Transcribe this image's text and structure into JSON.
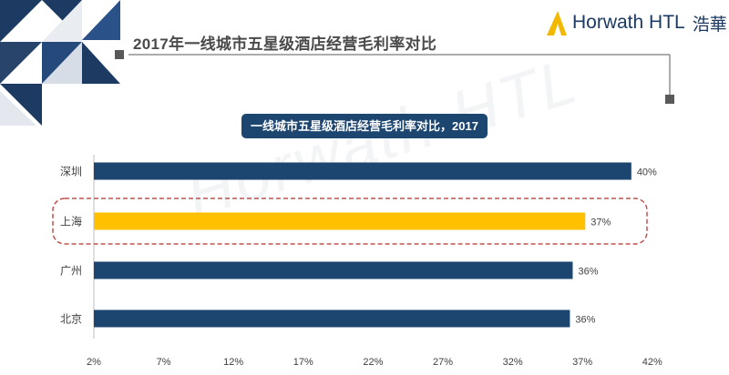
{
  "header": {
    "title": "2017年一线城市五星级酒店经营毛利率对比"
  },
  "brand": {
    "name": "Horwath HTL",
    "name_cn": "浩華",
    "logo_icon": "triangle-mark-icon",
    "watermark": "Horwath HTL"
  },
  "colors": {
    "navy": "#1c4570",
    "highlight": "#ffc000",
    "deco_triangles": "#1d3a63",
    "dashed_outline": "#c0504d"
  },
  "chart_data": {
    "type": "bar",
    "orientation": "horizontal",
    "title": "一线城市五星级酒店经营毛利率对比，2017",
    "categories": [
      "深圳",
      "上海",
      "广州",
      "北京"
    ],
    "values": [
      40.5,
      37.2,
      36.3,
      36.1
    ],
    "data_labels": [
      "40%",
      "37%",
      "36%",
      "36%"
    ],
    "highlight_category": "上海",
    "x_ticks": [
      "2%",
      "7%",
      "12%",
      "17%",
      "22%",
      "27%",
      "32%",
      "37%",
      "42%"
    ],
    "xlim": [
      2,
      42
    ],
    "grid": false,
    "legend": "none"
  }
}
